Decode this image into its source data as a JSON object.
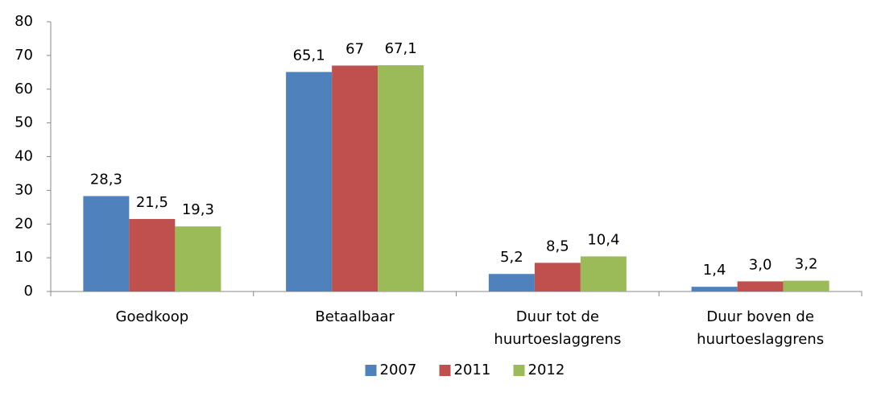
{
  "chart_data": {
    "type": "bar",
    "categories": [
      "Goedkoop",
      "Betaalbaar",
      "Duur tot de huurtoeslaggrens",
      "Duur boven de huurtoeslaggrens"
    ],
    "series": [
      {
        "name": "2007",
        "color": "#4f81bd",
        "values": [
          28.3,
          65.1,
          5.2,
          1.4
        ],
        "value_labels": [
          "28,3",
          "65,1",
          "5,2",
          "1,4"
        ]
      },
      {
        "name": "2011",
        "color": "#c0504d",
        "values": [
          21.5,
          67,
          8.5,
          3.0
        ],
        "value_labels": [
          "21,5",
          "67",
          "8,5",
          "3,0"
        ]
      },
      {
        "name": "2012",
        "color": "#9bbb59",
        "values": [
          19.3,
          67.1,
          10.4,
          3.2
        ],
        "value_labels": [
          "19,3",
          "67,1",
          "10,4",
          "3,2"
        ]
      }
    ],
    "ylim": [
      0,
      80
    ],
    "yticks": [
      0,
      10,
      20,
      30,
      40,
      50,
      60,
      70,
      80
    ],
    "grid": false,
    "legend": "bottom"
  }
}
